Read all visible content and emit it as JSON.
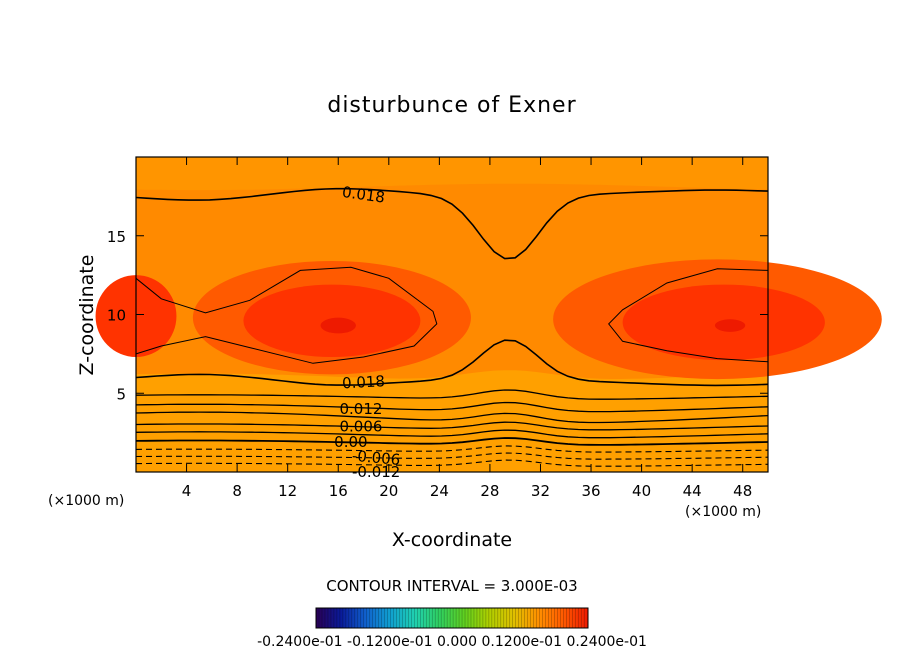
{
  "chart_data": {
    "type": "contour",
    "title": "disturbunce of Exner",
    "xlabel": "X-coordinate",
    "ylabel": "Z-coordinate",
    "x_unit": "(×1000 m)",
    "y_unit": "(×1000 m)",
    "xlim": [
      0,
      50
    ],
    "ylim": [
      0,
      20
    ],
    "x_ticks": [
      4,
      8,
      12,
      16,
      20,
      24,
      28,
      32,
      36,
      40,
      44,
      48
    ],
    "y_ticks": [
      5,
      10,
      15
    ],
    "contour_interval_text": "CONTOUR INTERVAL = 3.000E-03",
    "contour_interval": 0.003,
    "contour_labels": [
      "0.018",
      "0.018",
      "0.012",
      "0.006",
      "0.00",
      "-0.006",
      "-0.012"
    ],
    "colorbar_ticks_text": "-0.2400e-01 -0.1200e-01 0.000 0.1200e-01 0.2400e-01",
    "colorbar_range": [
      -0.024,
      0.024
    ],
    "palette": [
      "#1a0066",
      "#2233cc",
      "#1e88e5",
      "#00cfd8",
      "#22dd88",
      "#22cc22",
      "#88dd00",
      "#dddd00",
      "#ffcc00",
      "#ffa000",
      "#ff7700",
      "#ff4d00",
      "#ee1a00"
    ]
  }
}
